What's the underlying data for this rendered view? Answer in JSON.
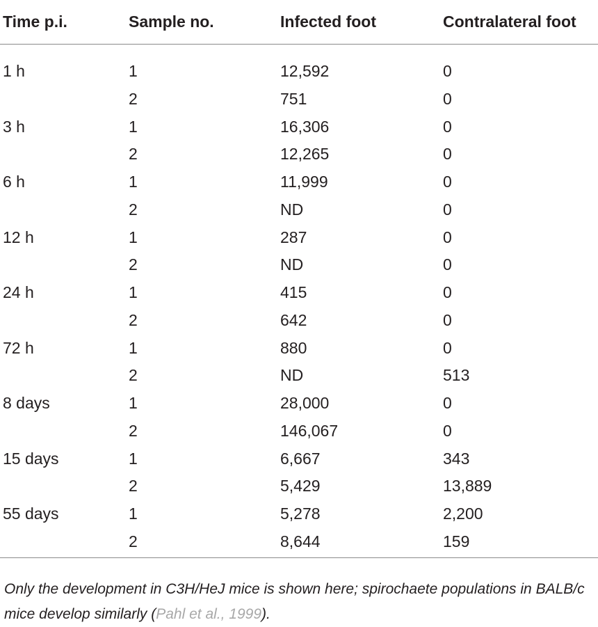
{
  "table": {
    "headers": {
      "time": "Time p.i.",
      "sample": "Sample no.",
      "infected": "Infected foot",
      "contralateral": "Contralateral foot"
    },
    "rows": [
      {
        "time": "1 h",
        "sample": "1",
        "infected": "12,592",
        "contralateral": "0"
      },
      {
        "time": "",
        "sample": "2",
        "infected": "751",
        "contralateral": "0"
      },
      {
        "time": "3 h",
        "sample": "1",
        "infected": "16,306",
        "contralateral": "0"
      },
      {
        "time": "",
        "sample": "2",
        "infected": "12,265",
        "contralateral": "0"
      },
      {
        "time": "6 h",
        "sample": "1",
        "infected": "11,999",
        "contralateral": "0"
      },
      {
        "time": "",
        "sample": "2",
        "infected": "ND",
        "contralateral": "0"
      },
      {
        "time": "12 h",
        "sample": "1",
        "infected": "287",
        "contralateral": "0"
      },
      {
        "time": "",
        "sample": "2",
        "infected": "ND",
        "contralateral": "0"
      },
      {
        "time": "24 h",
        "sample": "1",
        "infected": "415",
        "contralateral": "0"
      },
      {
        "time": "",
        "sample": "2",
        "infected": "642",
        "contralateral": "0"
      },
      {
        "time": "72 h",
        "sample": "1",
        "infected": "880",
        "contralateral": "0"
      },
      {
        "time": "",
        "sample": "2",
        "infected": "ND",
        "contralateral": "513"
      },
      {
        "time": "8 days",
        "sample": "1",
        "infected": "28,000",
        "contralateral": "0"
      },
      {
        "time": "",
        "sample": "2",
        "infected": "146,067",
        "contralateral": "0"
      },
      {
        "time": "15 days",
        "sample": "1",
        "infected": "6,667",
        "contralateral": "343"
      },
      {
        "time": "",
        "sample": "2",
        "infected": "5,429",
        "contralateral": "13,889"
      },
      {
        "time": "55 days",
        "sample": "1",
        "infected": "5,278",
        "contralateral": "2,200"
      },
      {
        "time": "",
        "sample": "2",
        "infected": "8,644",
        "contralateral": "159"
      }
    ]
  },
  "caption": {
    "text_before": "Only the development in C3H/HeJ mice is shown here; spirochaete populations in BALB/c mice develop similarly (",
    "citation": "Pahl et al., 1999",
    "text_after": ")."
  }
}
